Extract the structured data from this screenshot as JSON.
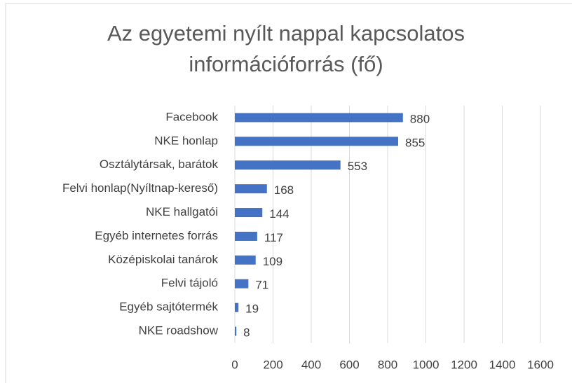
{
  "chart_data": {
    "type": "bar",
    "orientation": "horizontal",
    "title": "Az egyetemi nyílt nappal kapcsolatos információforrás (fő)",
    "categories": [
      "Facebook",
      "NKE honlap",
      "Osztálytársak, barátok",
      "Felvi honlap(Nyíltnap-kereső)",
      "NKE hallgatói",
      "Egyéb internetes forrás",
      "Középiskolai tanárok",
      "Felvi tájoló",
      "Egyéb sajtótermék",
      "NKE roadshow"
    ],
    "values": [
      880,
      855,
      553,
      168,
      144,
      117,
      109,
      71,
      19,
      8
    ],
    "color": "#4472c4",
    "xlim": [
      0,
      1600
    ],
    "xticks": [
      0,
      200,
      400,
      600,
      800,
      1000,
      1200,
      1400,
      1600
    ],
    "grid": true
  }
}
